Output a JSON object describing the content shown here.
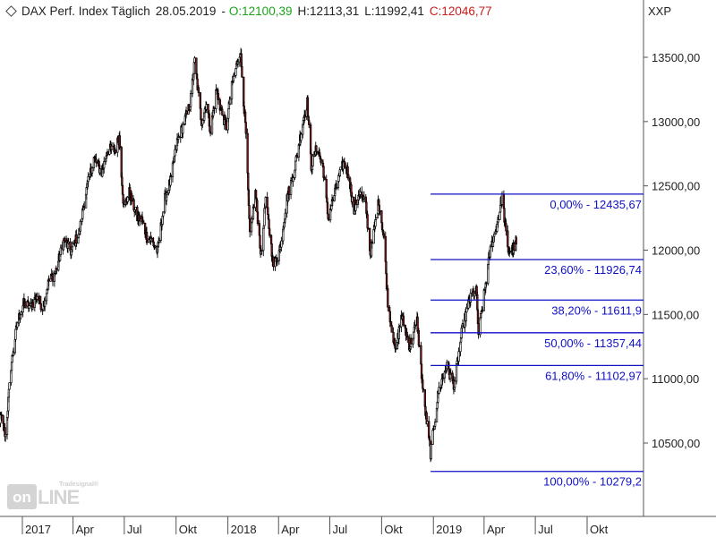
{
  "header": {
    "title": "DAX Perf. Index Täglich",
    "date": "28.05.2019",
    "open": "O:12100,39",
    "high": "H:12113,31",
    "low": "L:11992,41",
    "close": "C:12046,77",
    "currency": "XXP"
  },
  "watermark": {
    "small": "Tradesignal®",
    "box": "on",
    "rest": "LINE"
  },
  "colors": {
    "up": "#ffffff",
    "down": "#8b1a1a",
    "wick": "#000000",
    "fib": "#1010c8",
    "ohlc_open": "#1aa31a",
    "ohlc_close": "#cc1a1a"
  },
  "chart_data": {
    "type": "candlestick",
    "title": "DAX Perf. Index Täglich",
    "x_range": [
      "2016-11",
      "2019-11"
    ],
    "x_tick_labels": [
      "2017",
      "Apr",
      "Jul",
      "Okt",
      "2018",
      "Apr",
      "Jul",
      "Okt",
      "2019",
      "Apr",
      "Jul",
      "Okt"
    ],
    "x_tick_dates": [
      "2017-01-01",
      "2017-04-01",
      "2017-07-01",
      "2017-10-01",
      "2018-01-01",
      "2018-04-01",
      "2018-07-01",
      "2018-10-01",
      "2019-01-01",
      "2019-04-01",
      "2019-07-01",
      "2019-10-01"
    ],
    "y_axis_side": "right",
    "y_range": [
      10000,
      13800
    ],
    "y_ticks": [
      10500,
      11000,
      11500,
      12000,
      12500,
      13000,
      13500
    ],
    "y_tick_labels": [
      "10500,00",
      "11000,00",
      "11500,00",
      "12000,00",
      "12500,00",
      "13000,00",
      "13500,00"
    ],
    "path_points": [
      [
        "2016-11-14",
        10620
      ],
      [
        "2016-11-24",
        10700
      ],
      [
        "2016-12-02",
        10560
      ],
      [
        "2016-12-12",
        11100
      ],
      [
        "2016-12-23",
        11440
      ],
      [
        "2017-01-03",
        11580
      ],
      [
        "2017-01-16",
        11560
      ],
      [
        "2017-01-27",
        11650
      ],
      [
        "2017-02-06",
        11550
      ],
      [
        "2017-02-17",
        11760
      ],
      [
        "2017-03-01",
        11830
      ],
      [
        "2017-03-16",
        12080
      ],
      [
        "2017-03-28",
        11990
      ],
      [
        "2017-04-12",
        12140
      ],
      [
        "2017-04-24",
        12450
      ],
      [
        "2017-05-08",
        12720
      ],
      [
        "2017-05-22",
        12600
      ],
      [
        "2017-06-01",
        12780
      ],
      [
        "2017-06-15",
        12780
      ],
      [
        "2017-06-22",
        12880
      ],
      [
        "2017-06-30",
        12330
      ],
      [
        "2017-07-10",
        12450
      ],
      [
        "2017-07-24",
        12250
      ],
      [
        "2017-08-01",
        12240
      ],
      [
        "2017-08-10",
        12100
      ],
      [
        "2017-08-18",
        12080
      ],
      [
        "2017-08-29",
        11990
      ],
      [
        "2017-09-11",
        12400
      ],
      [
        "2017-09-22",
        12550
      ],
      [
        "2017-10-02",
        12830
      ],
      [
        "2017-10-16",
        13000
      ],
      [
        "2017-10-26",
        13140
      ],
      [
        "2017-11-03",
        13470
      ],
      [
        "2017-11-15",
        13000
      ],
      [
        "2017-11-24",
        13150
      ],
      [
        "2017-12-01",
        12930
      ],
      [
        "2017-12-12",
        13250
      ],
      [
        "2017-12-19",
        13100
      ],
      [
        "2017-12-29",
        12960
      ],
      [
        "2018-01-09",
        13300
      ],
      [
        "2018-01-23",
        13560
      ],
      [
        "2018-02-02",
        12900
      ],
      [
        "2018-02-09",
        12100
      ],
      [
        "2018-02-19",
        12450
      ],
      [
        "2018-03-01",
        11950
      ],
      [
        "2018-03-09",
        12400
      ],
      [
        "2018-03-23",
        11880
      ],
      [
        "2018-04-03",
        12000
      ],
      [
        "2018-04-16",
        12400
      ],
      [
        "2018-04-30",
        12650
      ],
      [
        "2018-05-15",
        13020
      ],
      [
        "2018-05-22",
        13150
      ],
      [
        "2018-05-29",
        12650
      ],
      [
        "2018-06-08",
        12800
      ],
      [
        "2018-06-19",
        12650
      ],
      [
        "2018-06-28",
        12250
      ],
      [
        "2018-07-10",
        12450
      ],
      [
        "2018-07-25",
        12680
      ],
      [
        "2018-08-03",
        12600
      ],
      [
        "2018-08-13",
        12300
      ],
      [
        "2018-08-22",
        12450
      ],
      [
        "2018-09-03",
        12350
      ],
      [
        "2018-09-11",
        11970
      ],
      [
        "2018-09-26",
        12380
      ],
      [
        "2018-10-05",
        12100
      ],
      [
        "2018-10-12",
        11600
      ],
      [
        "2018-10-26",
        11200
      ],
      [
        "2018-11-05",
        11500
      ],
      [
        "2018-11-20",
        11250
      ],
      [
        "2018-12-03",
        11450
      ],
      [
        "2018-12-14",
        10880
      ],
      [
        "2018-12-27",
        10420
      ],
      [
        "2019-01-10",
        10900
      ],
      [
        "2019-01-24",
        11100
      ],
      [
        "2019-02-07",
        10950
      ],
      [
        "2019-02-20",
        11350
      ],
      [
        "2019-03-05",
        11600
      ],
      [
        "2019-03-18",
        11700
      ],
      [
        "2019-03-22",
        11350
      ],
      [
        "2019-04-01",
        11650
      ],
      [
        "2019-04-12",
        12000
      ],
      [
        "2019-04-24",
        12200
      ],
      [
        "2019-05-03",
        12420
      ],
      [
        "2019-05-13",
        12000
      ],
      [
        "2019-05-20",
        12000
      ],
      [
        "2019-05-28",
        12046
      ]
    ],
    "fibonacci": {
      "range_start": "2018-12-27",
      "range_end": "2019-11-15",
      "levels": [
        {
          "label": "0,00% - 12435,67",
          "value": 12435.67
        },
        {
          "label": "23,60% - 11926,74",
          "value": 11926.74
        },
        {
          "label": "38,20% - 11611,9",
          "value": 11611.9
        },
        {
          "label": "50,00% - 11357,44",
          "value": 11357.44
        },
        {
          "label": "61,80% - 11102,97",
          "value": 11102.97
        },
        {
          "label": "100,00% - 10279,2",
          "value": 10279.2
        }
      ]
    },
    "last_candle": {
      "date": "2019-05-28",
      "open": 12100.39,
      "high": 12113.31,
      "low": 11992.41,
      "close": 12046.77
    }
  }
}
